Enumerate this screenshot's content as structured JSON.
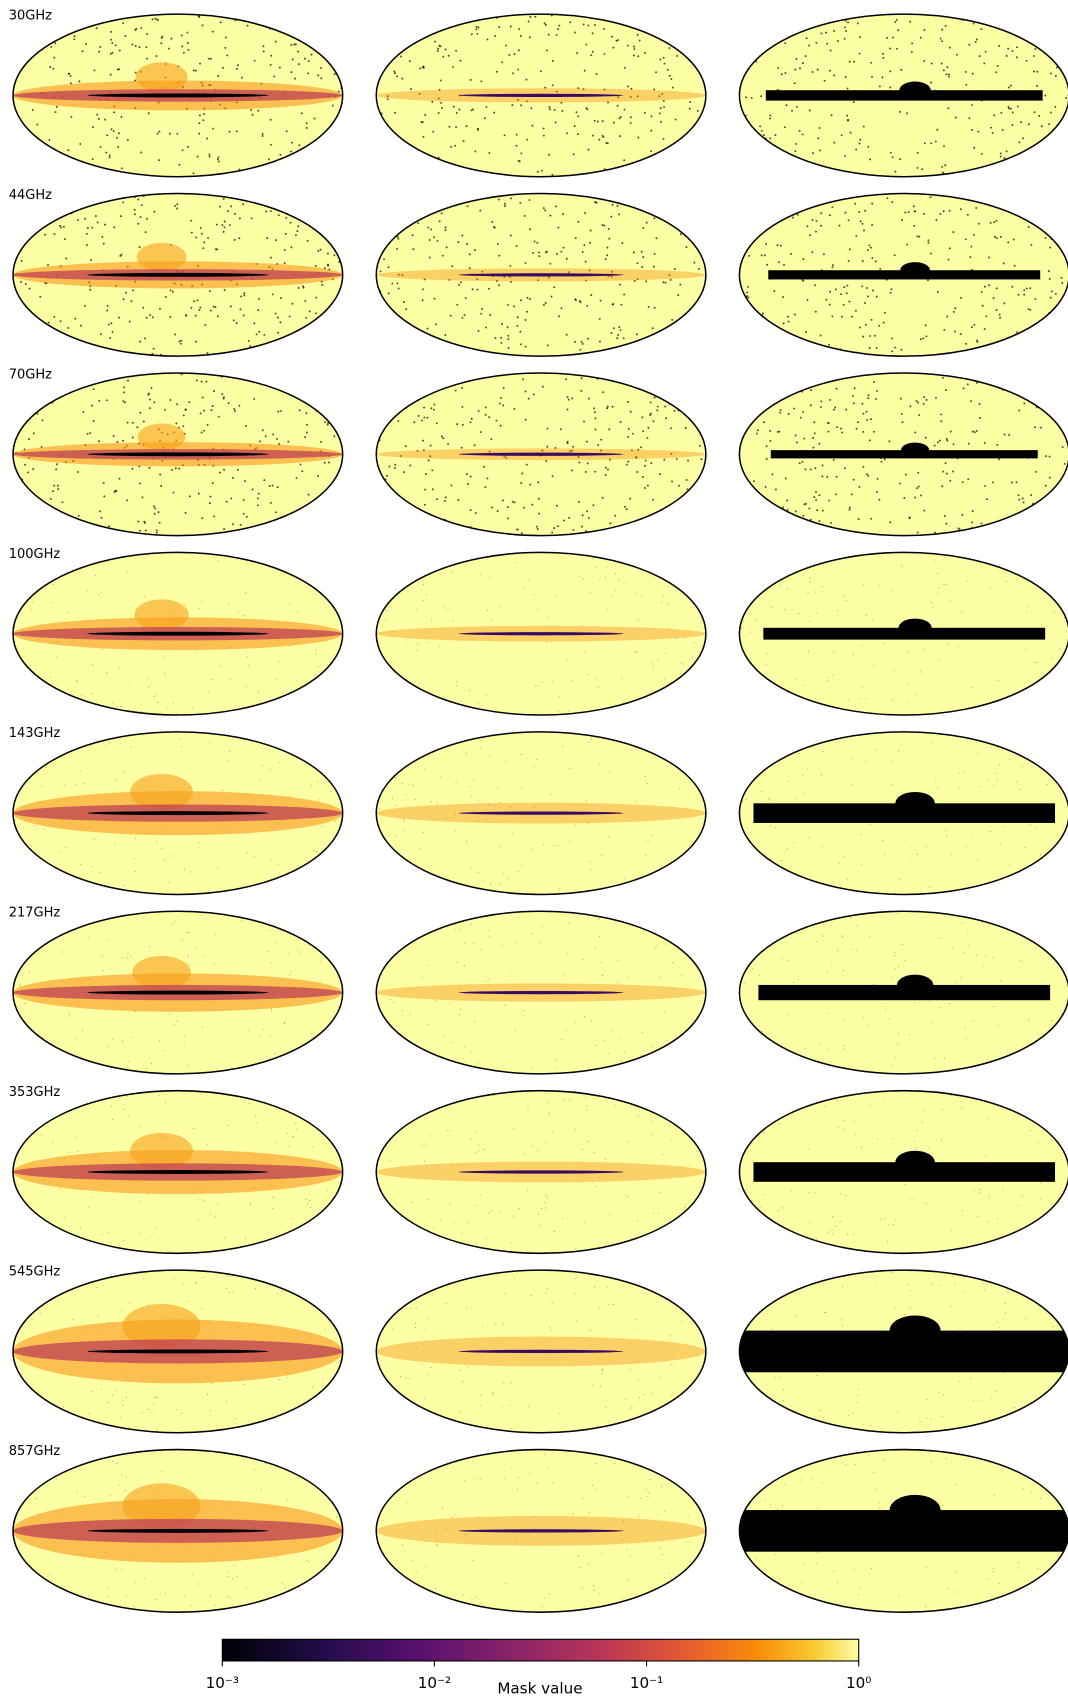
{
  "chart_data": {
    "type": "image-grid",
    "row_labels": [
      "30GHz",
      "44GHz",
      "70GHz",
      "100GHz",
      "143GHz",
      "217GHz",
      "353GHz",
      "545GHz",
      "857GHz"
    ],
    "colorbar": {
      "label": "Mask value",
      "lim": [
        0.001,
        1
      ],
      "log_scale": true,
      "colormap": "inferno",
      "ticks": [
        {
          "value": 0.001,
          "label": "10⁻³"
        },
        {
          "value": 0.01,
          "label": "10⁻²"
        },
        {
          "value": 0.1,
          "label": "10⁻¹"
        },
        {
          "value": 1,
          "label": "10⁰"
        }
      ]
    }
  }
}
